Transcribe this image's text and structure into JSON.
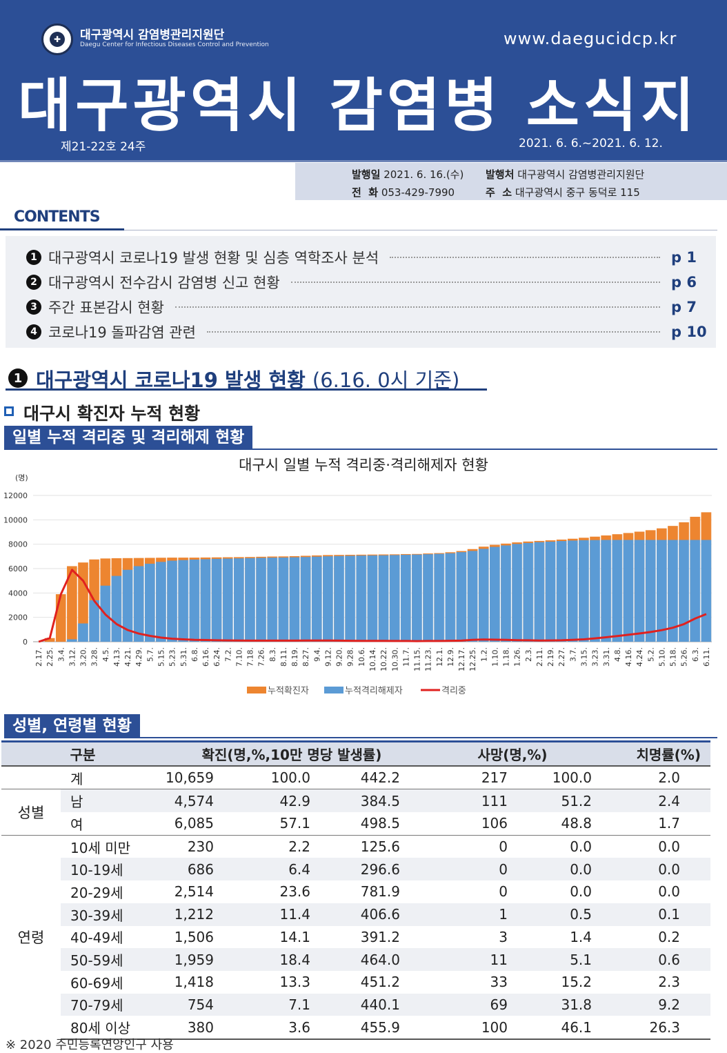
{
  "header": {
    "org_name": "대구광역시 감염병관리지원단",
    "org_eng": "Daegu Center for Infectious Diseases Control and Prevention",
    "website": "www.daegucidcp.kr",
    "title": "대구광역시 감염병 소식지",
    "issue": "제21-22호 24주",
    "period": "2021. 6. 6.~2021. 6. 12."
  },
  "info": {
    "date_label": "발행일",
    "date": "2021. 6. 16.(수)",
    "publisher_label": "발행처",
    "publisher": "대구광역시 감염병관리지원단",
    "phone_label": "전  화",
    "phone": "053-429-7990",
    "address_label": "주  소",
    "address": "대구광역시 중구 동덕로 115"
  },
  "contents": {
    "title": "CONTENTS",
    "items": [
      {
        "num": "1",
        "text": "대구광역시 코로나19 발생 현황 및 심층 역학조사 분석",
        "page": "p 1"
      },
      {
        "num": "2",
        "text": "대구광역시 전수감시 감염병 신고 현황",
        "page": "p 6"
      },
      {
        "num": "3",
        "text": "주간 표본감시 현황",
        "page": "p 7"
      },
      {
        "num": "4",
        "text": "코로나19 돌파감염 관련",
        "page": "p 10"
      }
    ]
  },
  "section1": {
    "num": "1",
    "title": "대구광역시 코로나19 발생 현황",
    "basis": "(6.16. 0시 기준)",
    "subtitle": "대구시 확진자 누적 현황",
    "tag_daily": "일별 누적 격리중 및 격리해제 현황",
    "tag_demo": "성별, 연령별 현황"
  },
  "chart_data": {
    "type": "bar",
    "title": "대구시 일별 누적 격리중·격리해제자 현황",
    "ylabel": "(명)",
    "ylim": [
      0,
      12000
    ],
    "yticks": [
      "0",
      "2000",
      "4000",
      "6000",
      "8000",
      "10000",
      "12000"
    ],
    "categories": [
      "2.17.",
      "2.25.",
      "3.4.",
      "3.12.",
      "3.20.",
      "3.28.",
      "4.5.",
      "4.13.",
      "4.21.",
      "4.29.",
      "5.7.",
      "5.15.",
      "5.23.",
      "5.31.",
      "6.8.",
      "6.16.",
      "6.24.",
      "7.2.",
      "7.10.",
      "7.18.",
      "7.26.",
      "8.3.",
      "8.11.",
      "8.19.",
      "8.27.",
      "9.4.",
      "9.12.",
      "9.20.",
      "9.28.",
      "10.6.",
      "10.14.",
      "10.22.",
      "10.30.",
      "11.7.",
      "11.15.",
      "11.23.",
      "12.1.",
      "12.9.",
      "12.17.",
      "12.25.",
      "1.2.",
      "1.10.",
      "1.18.",
      "1.26.",
      "2.3.",
      "2.11.",
      "2.19.",
      "2.27.",
      "3.7.",
      "3.15.",
      "3.23.",
      "3.31.",
      "4.8.",
      "4.16.",
      "4.24.",
      "5.2.",
      "5.10.",
      "5.18.",
      "5.26.",
      "6.3.",
      "6.11."
    ],
    "series": [
      {
        "name": "누적확진자",
        "color": "#ed8530",
        "kind": "bar",
        "values": [
          0,
          300,
          3900,
          6200,
          6500,
          6750,
          6830,
          6850,
          6860,
          6870,
          6880,
          6890,
          6900,
          6900,
          6900,
          6910,
          6920,
          6930,
          6940,
          6950,
          6970,
          6990,
          7000,
          7020,
          7050,
          7080,
          7110,
          7120,
          7130,
          7140,
          7150,
          7160,
          7170,
          7190,
          7200,
          7240,
          7270,
          7340,
          7440,
          7600,
          7800,
          7950,
          8050,
          8150,
          8220,
          8270,
          8320,
          8380,
          8450,
          8530,
          8620,
          8720,
          8820,
          8920,
          9030,
          9150,
          9300,
          9500,
          9800,
          10250,
          10620
        ]
      },
      {
        "name": "누적격리해제자",
        "color": "#5b9bd5",
        "kind": "bar",
        "values": [
          0,
          0,
          0,
          200,
          1500,
          3400,
          4600,
          5400,
          5900,
          6200,
          6400,
          6550,
          6650,
          6700,
          6740,
          6770,
          6800,
          6820,
          6840,
          6860,
          6880,
          6900,
          6910,
          6930,
          6950,
          6980,
          7010,
          7030,
          7050,
          7070,
          7080,
          7090,
          7110,
          7130,
          7150,
          7180,
          7210,
          7260,
          7350,
          7450,
          7620,
          7780,
          7900,
          8020,
          8100,
          8170,
          8210,
          8260,
          8300,
          8330,
          8340,
          8350,
          8350,
          8350,
          8350,
          8350,
          8350,
          8350,
          8350,
          8350,
          8350
        ]
      },
      {
        "name": "격리중",
        "color": "#e0211f",
        "kind": "line",
        "values": [
          0,
          300,
          3900,
          5900,
          5000,
          3350,
          2230,
          1450,
          960,
          670,
          480,
          340,
          250,
          200,
          160,
          140,
          120,
          110,
          100,
          90,
          90,
          90,
          90,
          90,
          100,
          100,
          100,
          90,
          80,
          70,
          70,
          70,
          60,
          60,
          50,
          60,
          60,
          80,
          90,
          150,
          180,
          170,
          150,
          130,
          120,
          100,
          110,
          120,
          150,
          200,
          280,
          370,
          470,
          570,
          680,
          800,
          950,
          1150,
          1450,
          1900,
          2270
        ]
      }
    ]
  },
  "table": {
    "headers": [
      "구분",
      "확진(명,%,10만 명당 발생률)",
      "사망(명,%)",
      "치명률(%)"
    ],
    "total": {
      "label": "계",
      "cells": [
        "10,659",
        "100.0",
        "442.2",
        "217",
        "100.0",
        "2.0"
      ]
    },
    "sex_group": "성별",
    "sex_rows": [
      {
        "label": "남",
        "cells": [
          "4,574",
          "42.9",
          "384.5",
          "111",
          "51.2",
          "2.4"
        ]
      },
      {
        "label": "여",
        "cells": [
          "6,085",
          "57.1",
          "498.5",
          "106",
          "48.8",
          "1.7"
        ]
      }
    ],
    "age_group": "연령",
    "age_rows": [
      {
        "label": "10세 미만",
        "cells": [
          "230",
          "2.2",
          "125.6",
          "0",
          "0.0",
          "0.0"
        ]
      },
      {
        "label": "10-19세",
        "cells": [
          "686",
          "6.4",
          "296.6",
          "0",
          "0.0",
          "0.0"
        ]
      },
      {
        "label": "20-29세",
        "cells": [
          "2,514",
          "23.6",
          "781.9",
          "0",
          "0.0",
          "0.0"
        ]
      },
      {
        "label": "30-39세",
        "cells": [
          "1,212",
          "11.4",
          "406.6",
          "1",
          "0.5",
          "0.1"
        ]
      },
      {
        "label": "40-49세",
        "cells": [
          "1,506",
          "14.1",
          "391.2",
          "3",
          "1.4",
          "0.2"
        ]
      },
      {
        "label": "50-59세",
        "cells": [
          "1,959",
          "18.4",
          "464.0",
          "11",
          "5.1",
          "0.6"
        ]
      },
      {
        "label": "60-69세",
        "cells": [
          "1,418",
          "13.3",
          "451.2",
          "33",
          "15.2",
          "2.3"
        ]
      },
      {
        "label": "70-79세",
        "cells": [
          "754",
          "7.1",
          "440.1",
          "69",
          "31.8",
          "9.2"
        ]
      },
      {
        "label": "80세 이상",
        "cells": [
          "380",
          "3.6",
          "455.9",
          "100",
          "46.1",
          "26.3"
        ]
      }
    ],
    "footnote": "※ 2020 주민등록연앙인구 사용"
  }
}
